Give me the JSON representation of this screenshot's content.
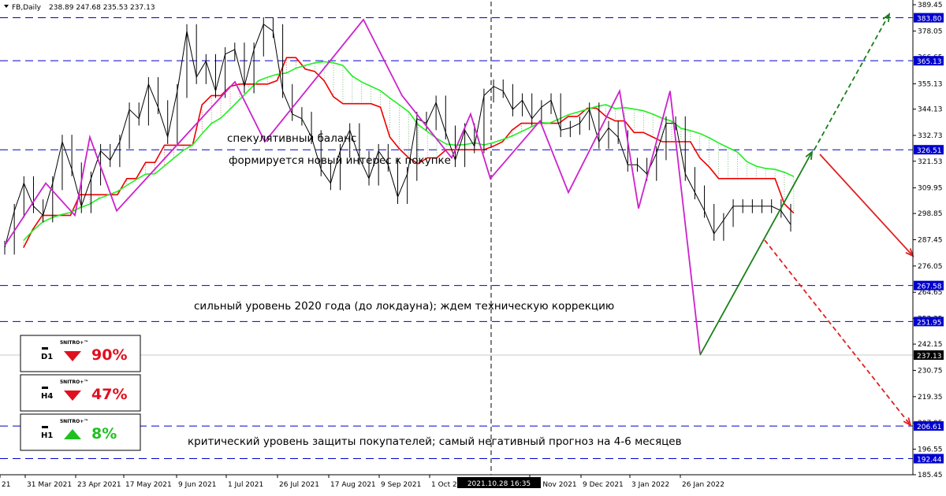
{
  "header": {
    "symbol": "FB,Daily",
    "ohlc": "238.89 247.68 235.53 237.13"
  },
  "chart_data": {
    "type": "line",
    "title": "",
    "ylim": [
      185.45,
      389.45
    ],
    "y_ticks": [
      "389.45",
      "378.05",
      "366.65",
      "355.13",
      "344.13",
      "332.73",
      "321.53",
      "309.95",
      "298.85",
      "287.45",
      "276.05",
      "264.65",
      "253.25",
      "242.15",
      "230.75",
      "219.35",
      "207.95",
      "196.55",
      "185.45"
    ],
    "x_ticks": [
      "21",
      "31 Mar 2021",
      "23 Apr 2021",
      "17 May 2021",
      "9 Jun 2021",
      "1 Jul 2021",
      "26 Jul 2021",
      "17 Aug 2021",
      "9 Sep 2021",
      "1 Oct 20",
      "16 Nov 2021",
      "9 Dec 2021",
      "3 Jan 2022",
      "26 Jan 2022"
    ],
    "crosshair_label": "2021.10.28 16:35",
    "levels": [
      {
        "value": 383.8,
        "label": "383.80"
      },
      {
        "value": 365.13,
        "label": "365.13"
      },
      {
        "value": 326.51,
        "label": "326.51"
      },
      {
        "value": 267.58,
        "label": "267.58"
      },
      {
        "value": 251.95,
        "label": "251.95"
      },
      {
        "value": 206.61,
        "label": "206.61"
      },
      {
        "value": 192.44,
        "label": "192.44"
      }
    ],
    "current_price": {
      "value": 237.13,
      "label": "237.13"
    },
    "series": [
      {
        "values": [
          284,
          300,
          312,
          302,
          298,
          312,
          330,
          318,
          302,
          314,
          326,
          322,
          330,
          344,
          340,
          355,
          345,
          332,
          352,
          378,
          358,
          365,
          352,
          368,
          370,
          354,
          370,
          381,
          378,
          352,
          342,
          340,
          332,
          318,
          312,
          326,
          335,
          323,
          314,
          326,
          320,
          306,
          316,
          340,
          338,
          347,
          334,
          322,
          335,
          328,
          350,
          354,
          352,
          344,
          348,
          340,
          345,
          348,
          335,
          336,
          338,
          344,
          330,
          336,
          332,
          320,
          320,
          316,
          325,
          338,
          338,
          316,
          308,
          300,
          290,
          296,
          302,
          302,
          302,
          302,
          302,
          300,
          294
        ]
      }
    ],
    "zigzag": [
      285,
      312,
      298,
      332,
      300,
      356,
      330,
      383,
      350,
      323,
      342,
      314,
      339,
      308,
      352,
      301,
      352,
      238
    ],
    "annotations": [
      {
        "text": "спекулятивный баланс"
      },
      {
        "text": "формируется новый интерес к покупке"
      },
      {
        "text": "сильный уровень 2020 года (до локдауна); ждем техническую коррекцию"
      },
      {
        "text": "критический уровень защиты покупателей; самый негативный прогноз на 4-6 месяцев"
      }
    ],
    "badges": [
      {
        "timeframe": "D1",
        "brand": "5NITRO+™",
        "value": "90%",
        "direction": "down",
        "color": "#e01020"
      },
      {
        "timeframe": "H4",
        "brand": "5NITRO+™",
        "value": "47%",
        "direction": "down",
        "color": "#e01020"
      },
      {
        "timeframe": "H1",
        "brand": "5NITRO+™",
        "value": "8%",
        "direction": "up",
        "color": "#20c020"
      }
    ],
    "colors": {
      "zigzag": "#cc22cc",
      "kijun": "#ee0000",
      "span": "#22ee22",
      "level": "#0000cc",
      "bull": "#1a7f1a",
      "bear": "#e02020"
    }
  }
}
